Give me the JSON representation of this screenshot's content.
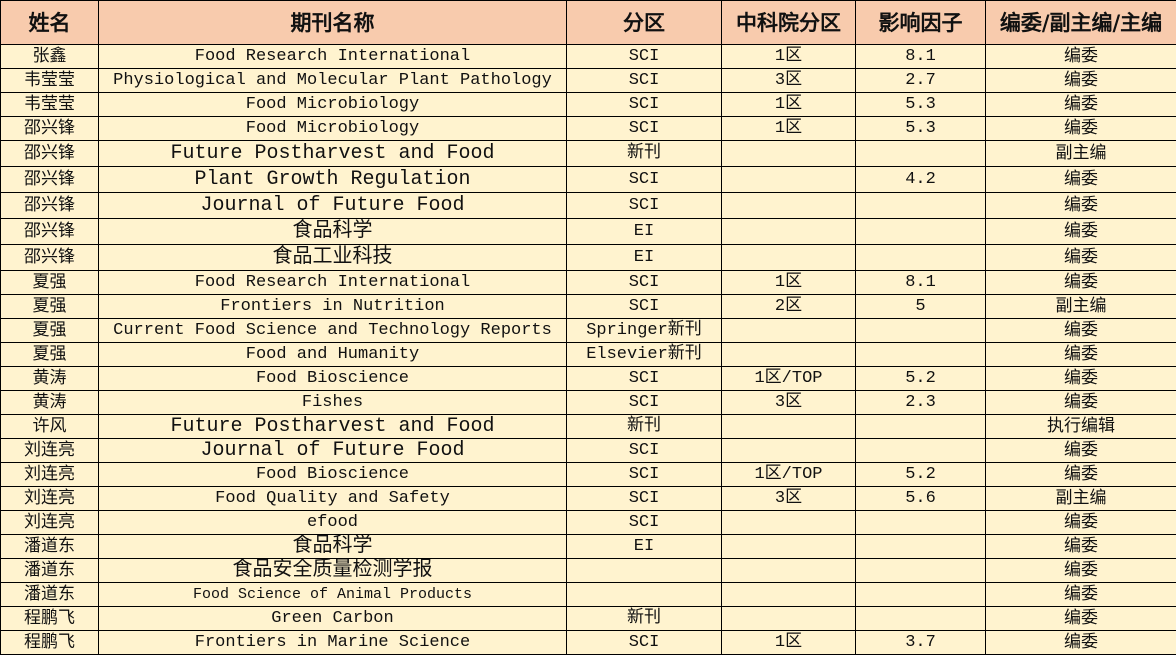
{
  "headers": [
    "姓名",
    "期刊名称",
    "分区",
    "中科院分区",
    "影响因子",
    "编委/副主编/主编"
  ],
  "rows": [
    [
      "张鑫",
      "Food Research International",
      "SCI",
      "1区",
      "8.1",
      "编委"
    ],
    [
      "韦莹莹",
      "Physiological and Molecular Plant Pathology",
      "SCI",
      "3区",
      "2.7",
      "编委"
    ],
    [
      "韦莹莹",
      "Food Microbiology",
      "SCI",
      "1区",
      "5.3",
      "编委"
    ],
    [
      "邵兴锋",
      "Food Microbiology",
      "SCI",
      "1区",
      "5.3",
      "编委"
    ],
    [
      "邵兴锋",
      "Future Postharvest and Food",
      "新刊",
      "",
      "",
      "副主编"
    ],
    [
      "邵兴锋",
      "Plant Growth Regulation",
      "SCI",
      "",
      "4.2",
      "编委"
    ],
    [
      "邵兴锋",
      "Journal of Future Food",
      "SCI",
      "",
      "",
      "编委"
    ],
    [
      "邵兴锋",
      "食品科学",
      "EI",
      "",
      "",
      "编委"
    ],
    [
      "邵兴锋",
      "食品工业科技",
      "EI",
      "",
      "",
      "编委"
    ],
    [
      "夏强",
      "Food Research International",
      "SCI",
      "1区",
      "8.1",
      "编委"
    ],
    [
      "夏强",
      "Frontiers in Nutrition",
      "SCI",
      "2区",
      "5",
      "副主编"
    ],
    [
      "夏强",
      "Current Food Science and Technology Reports",
      "Springer新刊",
      "",
      "",
      "编委"
    ],
    [
      "夏强",
      "Food and Humanity",
      "Elsevier新刊",
      "",
      "",
      "编委"
    ],
    [
      "黄涛",
      "Food Bioscience",
      "SCI",
      "1区/TOP",
      "5.2",
      "编委"
    ],
    [
      "黄涛",
      "Fishes",
      "SCI",
      "3区",
      "2.3",
      "编委"
    ],
    [
      "许风",
      "Future Postharvest and Food",
      "新刊",
      "",
      "",
      "执行编辑"
    ],
    [
      "刘连亮",
      "Journal of Future Food",
      "SCI",
      "",
      "",
      "编委"
    ],
    [
      "刘连亮",
      "Food Bioscience",
      "SCI",
      "1区/TOP",
      "5.2",
      "编委"
    ],
    [
      "刘连亮",
      "Food Quality and Safety",
      "SCI",
      "3区",
      "5.6",
      "副主编"
    ],
    [
      "刘连亮",
      "efood",
      "SCI",
      "",
      "",
      "编委"
    ],
    [
      "潘道东",
      "食品科学",
      "EI",
      "",
      "",
      "编委"
    ],
    [
      "潘道东",
      "食品安全质量检测学报",
      "",
      "",
      "",
      "编委"
    ],
    [
      "潘道东",
      "Food Science of Animal Products",
      "",
      "",
      "",
      "编委"
    ],
    [
      "程鹏飞",
      "Green Carbon",
      "新刊",
      "",
      "",
      "编委"
    ],
    [
      "程鹏飞",
      "Frontiers in Marine Science",
      "SCI",
      "1区",
      "3.7",
      "编委"
    ]
  ],
  "colors": {
    "header_bg": "#F8CBAD",
    "body_bg": "#FFF3CF",
    "border": "#000000"
  }
}
